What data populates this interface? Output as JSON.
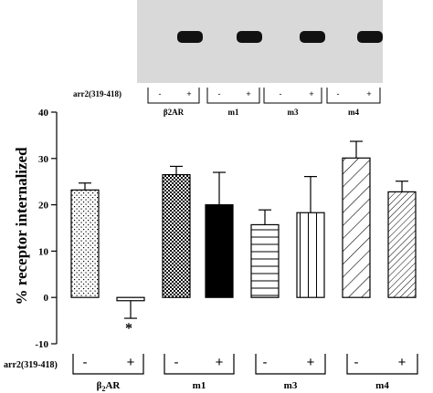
{
  "blot": {
    "row_label": "arr2(319-418)",
    "lane_signs": [
      "-",
      "+",
      "-",
      "+",
      "-",
      "+",
      "-",
      "+"
    ],
    "groups": [
      "β2AR",
      "m1",
      "m3",
      "m4"
    ],
    "bands_visible": [
      false,
      true,
      false,
      true,
      false,
      true,
      false,
      true
    ]
  },
  "chart_data": {
    "type": "bar",
    "ylabel": "% receptor internalized",
    "ylim": [
      -10,
      40
    ],
    "yticks": [
      -10,
      0,
      10,
      20,
      30,
      40
    ],
    "group_row_label": "arr2(319-418)",
    "groups": [
      {
        "name": "β2AR",
        "sub": "2",
        "base": "β",
        "rest": "AR"
      },
      {
        "name": "m1"
      },
      {
        "name": "m3"
      },
      {
        "name": "m4"
      }
    ],
    "bars": [
      {
        "group": "β2AR",
        "sign": "-",
        "value": 23.2,
        "error": 1.5,
        "pattern": "dots"
      },
      {
        "group": "β2AR",
        "sign": "+",
        "value": -0.7,
        "error": 3.8,
        "pattern": "hlines",
        "annotation": "*"
      },
      {
        "group": "m1",
        "sign": "-",
        "value": 26.5,
        "error": 1.8,
        "pattern": "checker"
      },
      {
        "group": "m1",
        "sign": "+",
        "value": 20.0,
        "error": 7.0,
        "pattern": "solid"
      },
      {
        "group": "m3",
        "sign": "-",
        "value": 15.7,
        "error": 3.2,
        "pattern": "hlines"
      },
      {
        "group": "m3",
        "sign": "+",
        "value": 18.3,
        "error": 7.8,
        "pattern": "vlines"
      },
      {
        "group": "m4",
        "sign": "-",
        "value": 30.1,
        "error": 3.6,
        "pattern": "diag-wide"
      },
      {
        "group": "m4",
        "sign": "+",
        "value": 22.8,
        "error": 2.3,
        "pattern": "diag-narrow"
      }
    ],
    "colors": {
      "fill_solid": "#000000",
      "stroke": "#000000",
      "blot_bg": "#d9d9d9",
      "band": "#111111"
    }
  }
}
